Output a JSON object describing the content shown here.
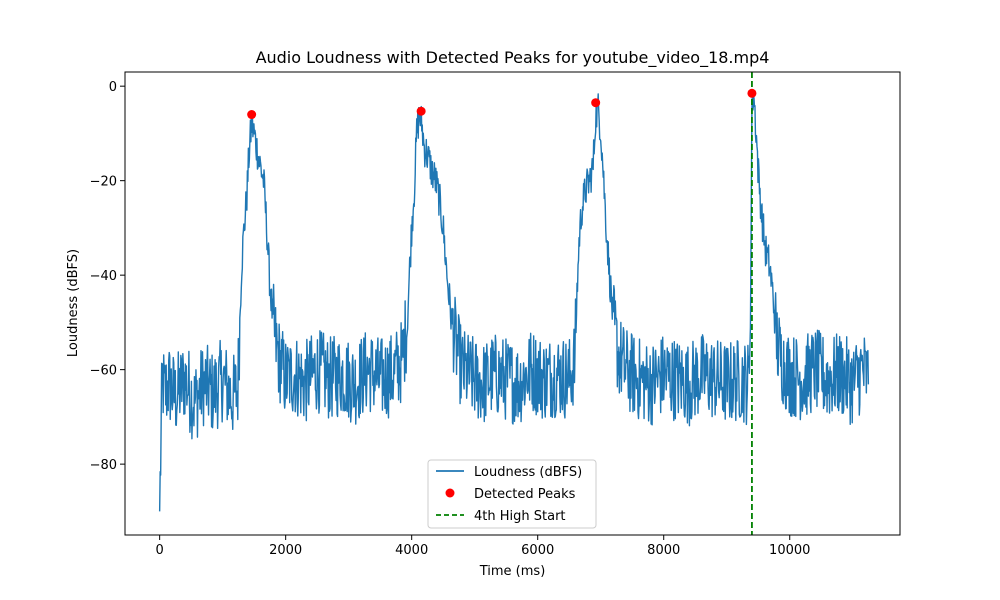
{
  "chart_data": {
    "type": "line",
    "title": "Audio Loudness with Detected Peaks for youtube_video_18.mp4",
    "xlabel": "Time (ms)",
    "ylabel": "Loudness (dBFS)",
    "xlim": [
      -550,
      11750
    ],
    "ylim": [
      -95,
      3
    ],
    "xticks": [
      0,
      2000,
      4000,
      6000,
      8000,
      10000
    ],
    "xtick_labels": [
      "0",
      "2000",
      "4000",
      "6000",
      "8000",
      "10000"
    ],
    "yticks": [
      0,
      -20,
      -40,
      -60,
      -80
    ],
    "ytick_labels": [
      "0",
      "−20",
      "−40",
      "−60",
      "−80"
    ],
    "grid": false,
    "legend": {
      "position": "bottom-center",
      "entries": [
        {
          "label": "Loudness (dBFS)",
          "kind": "line",
          "color": "#1f77b4"
        },
        {
          "label": "Detected Peaks",
          "kind": "marker",
          "color": "#ff0000"
        },
        {
          "label": "4th High Start",
          "kind": "dashed-line",
          "color": "#008000"
        }
      ]
    },
    "series": [
      {
        "name": "Loudness (dBFS)",
        "color": "#1f77b4",
        "x": [
          0,
          40,
          80,
          150,
          250,
          400,
          550,
          700,
          850,
          1000,
          1150,
          1240,
          1260,
          1300,
          1340,
          1380,
          1420,
          1460,
          1500,
          1540,
          1600,
          1650,
          1700,
          1750,
          1800,
          1850,
          1900,
          1950,
          2000,
          2150,
          2300,
          2500,
          2700,
          2900,
          3100,
          3300,
          3500,
          3700,
          3850,
          3930,
          3970,
          4000,
          4040,
          4080,
          4120,
          4160,
          4200,
          4260,
          4320,
          4380,
          4440,
          4500,
          4560,
          4620,
          4680,
          4740,
          4800,
          4900,
          5000,
          5150,
          5300,
          5500,
          5700,
          5900,
          6100,
          6300,
          6500,
          6590,
          6620,
          6660,
          6700,
          6760,
          6820,
          6880,
          6920,
          6960,
          7000,
          7040,
          7080,
          7140,
          7200,
          7280,
          7400,
          7600,
          7800,
          8000,
          8200,
          8400,
          8600,
          8800,
          9000,
          9200,
          9350,
          9380,
          9400,
          9430,
          9460,
          9500,
          9560,
          9620,
          9680,
          9740,
          9780,
          9820,
          9900,
          10000,
          10200,
          10400,
          10600,
          10800,
          11000,
          11150,
          11250
        ],
        "y": [
          -90,
          -62,
          -65,
          -63,
          -66,
          -62,
          -67,
          -63,
          -65,
          -62,
          -66,
          -64,
          -55,
          -38,
          -30,
          -24,
          -14,
          -8,
          -10,
          -13,
          -17,
          -20,
          -30,
          -42,
          -50,
          -55,
          -58,
          -60,
          -62,
          -61,
          -63,
          -60,
          -62,
          -61,
          -63,
          -60,
          -62,
          -61,
          -58,
          -50,
          -38,
          -30,
          -22,
          -10,
          -6,
          -8,
          -13,
          -15,
          -18,
          -20,
          -24,
          -30,
          -40,
          -48,
          -53,
          -57,
          -60,
          -61,
          -62,
          -63,
          -61,
          -62,
          -63,
          -60,
          -62,
          -61,
          -62,
          -58,
          -45,
          -32,
          -26,
          -22,
          -20,
          -17,
          -6,
          -5,
          -9,
          -18,
          -28,
          -40,
          -50,
          -57,
          -60,
          -62,
          -63,
          -61,
          -62,
          -63,
          -61,
          -62,
          -63,
          -62,
          -63,
          -45,
          -3,
          -2,
          -8,
          -18,
          -28,
          -35,
          -38,
          -45,
          -52,
          -56,
          -59,
          -61,
          -62,
          -60,
          -62,
          -61,
          -63,
          -60,
          -62
        ]
      },
      {
        "name": "Detected Peaks",
        "color": "#ff0000",
        "x": [
          1460,
          4150,
          6920,
          9400
        ],
        "y": [
          -6,
          -5.3,
          -3.5,
          -1.5
        ]
      }
    ],
    "vertical_lines": [
      {
        "name": "4th High Start",
        "x": 9400,
        "color": "#008000",
        "style": "dashed"
      }
    ]
  }
}
